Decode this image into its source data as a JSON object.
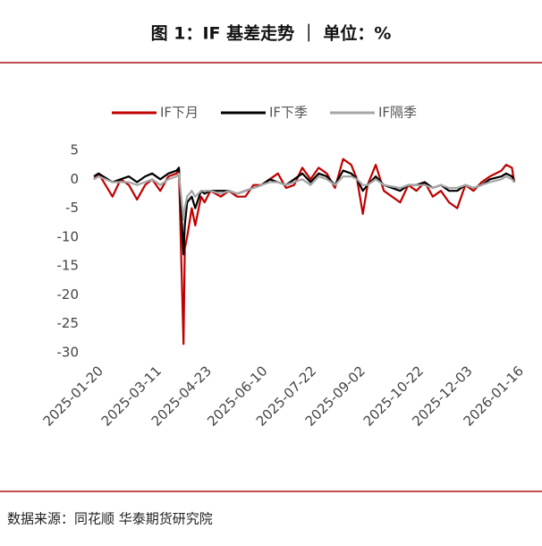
{
  "chart_data": {
    "type": "line",
    "title": "图 1：IF 基差走势 ｜ 单位：%",
    "source": "数据来源：同花顺 华泰期货研究院",
    "x": [
      "2025-01-20",
      "2025-01-24",
      "2025-02-05",
      "2025-02-12",
      "2025-02-19",
      "2025-02-26",
      "2025-03-05",
      "2025-03-11",
      "2025-03-18",
      "2025-03-25",
      "2025-04-01",
      "2025-04-03",
      "2025-04-07",
      "2025-04-08",
      "2025-04-10",
      "2025-04-14",
      "2025-04-17",
      "2025-04-22",
      "2025-04-25",
      "2025-04-30",
      "2025-05-09",
      "2025-05-16",
      "2025-05-23",
      "2025-05-30",
      "2025-06-06",
      "2025-06-13",
      "2025-06-20",
      "2025-06-27",
      "2025-07-04",
      "2025-07-11",
      "2025-07-18",
      "2025-07-25",
      "2025-08-01",
      "2025-08-08",
      "2025-08-15",
      "2025-08-22",
      "2025-08-29",
      "2025-09-03",
      "2025-09-08",
      "2025-09-12",
      "2025-09-19",
      "2025-09-26",
      "2025-10-10",
      "2025-10-17",
      "2025-10-24",
      "2025-10-31",
      "2025-11-07",
      "2025-11-14",
      "2025-11-21",
      "2025-11-28",
      "2025-12-05",
      "2025-12-12",
      "2025-12-19",
      "2025-12-26",
      "2026-01-05",
      "2026-01-09",
      "2026-01-14",
      "2026-01-16"
    ],
    "series": [
      {
        "name": "IF下月",
        "color": "#c00000",
        "values": [
          0,
          1,
          -3,
          0,
          -1,
          -3.5,
          -1,
          0,
          -2,
          0.5,
          1,
          2,
          -28.5,
          -12,
          -10,
          -5,
          -8,
          -3,
          -4,
          -2,
          -3,
          -2,
          -3,
          -3,
          -1,
          -1,
          0,
          1,
          -1.5,
          -1,
          2,
          0,
          2,
          1,
          -1.5,
          3.5,
          2.5,
          0,
          -6,
          -1,
          2.5,
          -2,
          -4,
          -1,
          -2,
          -0.5,
          -3,
          -2,
          -4,
          -5,
          -1,
          -2,
          -0.5,
          0.5,
          1.5,
          2.5,
          2,
          -0.5
        ]
      },
      {
        "name": "IF下季",
        "color": "#000000",
        "values": [
          0.5,
          1,
          -0.5,
          0,
          0.5,
          -0.5,
          0.5,
          1,
          0,
          1,
          1.5,
          2,
          -13,
          -8,
          -4,
          -3,
          -5,
          -2,
          -2.5,
          -2,
          -2,
          -2,
          -2.5,
          -2,
          -1.5,
          -1,
          0,
          -0.5,
          -1,
          0,
          1,
          -0.5,
          1,
          0.5,
          -1,
          1.5,
          1,
          0,
          -2,
          -1,
          0.5,
          -1,
          -2,
          -1,
          -1,
          -0.5,
          -1.5,
          -1,
          -2,
          -2,
          -1,
          -1.5,
          -1,
          0,
          0.5,
          1,
          0.5,
          -0.5
        ]
      },
      {
        "name": "IF隔季",
        "color": "#a6a6a6",
        "values": [
          0,
          0.5,
          -0.5,
          -0.5,
          -0.5,
          -1,
          -0.5,
          0,
          -1,
          0,
          0.5,
          1,
          -7,
          -5,
          -3,
          -2,
          -3,
          -2,
          -2,
          -2,
          -2.5,
          -2,
          -2.5,
          -2,
          -1.5,
          -1,
          -0.5,
          -0.5,
          -1,
          -0.5,
          0,
          -1,
          0.5,
          0,
          -1,
          0.5,
          0.5,
          0,
          -1,
          -1,
          0,
          -1,
          -1.5,
          -1,
          -1,
          -1,
          -1.5,
          -1,
          -1.5,
          -1.5,
          -1,
          -1.5,
          -1,
          -0.5,
          0,
          0.5,
          0,
          -0.5
        ]
      }
    ],
    "xlim": [
      "2025-01-20",
      "2026-01-16"
    ],
    "xticks": [
      "2025-01-20",
      "2025-03-11",
      "2025-04-23",
      "2025-06-10",
      "2025-07-22",
      "2025-09-02",
      "2025-10-22",
      "2025-12-03",
      "2026-01-16"
    ],
    "ylim": [
      -30,
      5
    ],
    "yticks": [
      5,
      0,
      -5,
      -10,
      -15,
      -20,
      -25,
      -30
    ],
    "legend": "top"
  }
}
